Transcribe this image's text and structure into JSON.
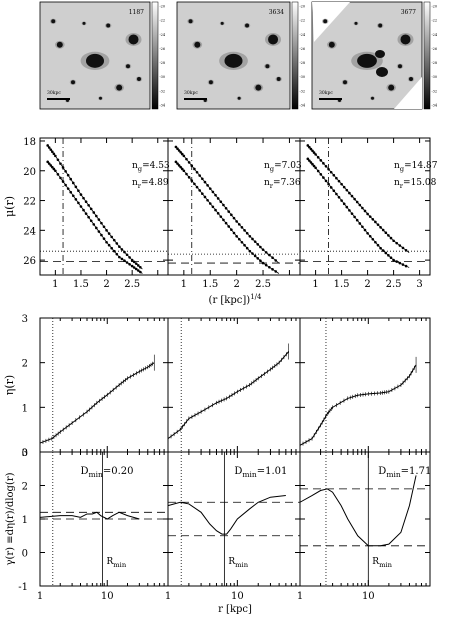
{
  "images": {
    "panels": [
      {
        "id_label": "1187",
        "scale_label": "30kpc",
        "colorbar_ticks": [
          "-20",
          "-22",
          "-24",
          "-26",
          "-28",
          "-30",
          "-32",
          "-34"
        ]
      },
      {
        "id_label": "3634",
        "scale_label": "30kpc",
        "colorbar_ticks": [
          "-20",
          "-22",
          "-24",
          "-26",
          "-28",
          "-30",
          "-32",
          "-34"
        ]
      },
      {
        "id_label": "3677",
        "scale_label": "30kpc",
        "colorbar_ticks": [
          "-20",
          "-22",
          "-24",
          "-26",
          "-28",
          "-30",
          "-32",
          "-34"
        ]
      }
    ]
  },
  "chart_data": [
    {
      "type": "scatter",
      "panel_group": "surface-brightness profiles",
      "ylabel": "μ(r)",
      "xlabel": "(r [kpc])^1/4",
      "xlim": [
        0.7,
        3.2
      ],
      "ylim": [
        27,
        17.8
      ],
      "y_inverted": true,
      "xticks": [
        "1",
        "1.5",
        "2",
        "2.5",
        "3"
      ],
      "yticks": [
        "18",
        "20",
        "22",
        "24",
        "26"
      ],
      "panels": [
        {
          "annotations": [
            "n_g=4.53",
            "n_r=4.89"
          ],
          "series": [
            {
              "band": "g",
              "x": [
                0.85,
                1.0,
                1.25,
                1.5,
                1.75,
                2.0,
                2.25,
                2.5,
                2.7
              ],
              "y": [
                18.3,
                19.0,
                20.3,
                21.6,
                22.8,
                24.0,
                25.1,
                26.0,
                26.6
              ]
            },
            {
              "band": "r",
              "x": [
                0.85,
                1.0,
                1.25,
                1.5,
                1.75,
                2.0,
                2.25,
                2.5,
                2.7
              ],
              "y": [
                19.4,
                20.0,
                21.2,
                22.4,
                23.6,
                24.8,
                25.8,
                26.4,
                26.9
              ]
            }
          ],
          "dotted_h": 25.4,
          "dashed_h": 26.1,
          "vline_x": 1.15
        },
        {
          "annotations": [
            "n_g=7.03",
            "n_r=7.36"
          ],
          "series": [
            {
              "band": "g",
              "x": [
                0.85,
                1.0,
                1.25,
                1.5,
                1.75,
                2.0,
                2.25,
                2.5,
                2.8
              ],
              "y": [
                18.4,
                19.0,
                20.1,
                21.2,
                22.3,
                23.4,
                24.4,
                25.3,
                26.2
              ]
            },
            {
              "band": "r",
              "x": [
                0.85,
                1.0,
                1.25,
                1.5,
                1.75,
                2.0,
                2.25,
                2.5,
                2.8
              ],
              "y": [
                19.4,
                20.0,
                21.1,
                22.2,
                23.3,
                24.4,
                25.4,
                26.2,
                26.9
              ]
            }
          ],
          "dotted_h": 25.6,
          "dashed_h": 26.2,
          "vline_x": 1.15
        },
        {
          "annotations": [
            "n_g=14.87",
            "n_r=15.08"
          ],
          "series": [
            {
              "band": "g",
              "x": [
                0.85,
                1.0,
                1.25,
                1.5,
                1.75,
                2.0,
                2.25,
                2.5,
                2.8
              ],
              "y": [
                18.3,
                18.9,
                19.9,
                20.9,
                21.9,
                22.9,
                23.8,
                24.7,
                25.5
              ]
            },
            {
              "band": "r",
              "x": [
                0.85,
                1.0,
                1.25,
                1.5,
                1.75,
                2.0,
                2.25,
                2.5,
                2.8
              ],
              "y": [
                19.2,
                19.8,
                20.9,
                22.0,
                23.1,
                24.2,
                25.2,
                26.0,
                26.5
              ]
            }
          ],
          "dotted_h": 25.4,
          "dashed_h": 26.1,
          "vline_x": 1.25
        }
      ]
    },
    {
      "type": "line",
      "panel_group": "eta profiles",
      "ylabel": "η(r)",
      "xlim": [
        1,
        80
      ],
      "ylim": [
        0,
        3
      ],
      "xscale": "log",
      "yticks": [
        "0",
        "1",
        "2",
        "3"
      ],
      "panels": [
        {
          "x": [
            1,
            1.5,
            2,
            3,
            5,
            7,
            10,
            15,
            20,
            30,
            40,
            50
          ],
          "y": [
            0.2,
            0.3,
            0.45,
            0.65,
            0.9,
            1.1,
            1.28,
            1.5,
            1.65,
            1.8,
            1.9,
            2.0
          ],
          "vline_x": 1.55
        },
        {
          "x": [
            1,
            1.5,
            2,
            3,
            5,
            7,
            10,
            15,
            20,
            30,
            40,
            55
          ],
          "y": [
            0.3,
            0.5,
            0.75,
            0.9,
            1.1,
            1.2,
            1.35,
            1.5,
            1.65,
            1.85,
            2.0,
            2.25
          ],
          "vline_x": 1.55
        },
        {
          "x": [
            1,
            1.5,
            2,
            2.5,
            3,
            5,
            7,
            10,
            15,
            20,
            30,
            40,
            50
          ],
          "y": [
            0.15,
            0.3,
            0.6,
            0.85,
            1.0,
            1.2,
            1.27,
            1.3,
            1.32,
            1.35,
            1.5,
            1.7,
            1.95
          ],
          "vline_x": 2.4
        }
      ]
    },
    {
      "type": "line",
      "panel_group": "gamma profiles",
      "ylabel": "γ(r) ≡dη(r)/dlog(r)",
      "xlabel": "r [kpc]",
      "xlim": [
        1,
        80
      ],
      "ylim": [
        -1,
        3
      ],
      "xscale": "log",
      "xticks": [
        "1",
        "10"
      ],
      "yticks": [
        "-1",
        "0",
        "1",
        "2",
        "3"
      ],
      "panels": [
        {
          "annotation": "D_min=0.20",
          "rmin_label": "R_min",
          "rmin_x": 8.5,
          "upper_dash": 1.2,
          "lower_dash": 1.0,
          "vline_x": 1.55,
          "x": [
            1,
            2,
            3,
            4,
            5,
            6,
            7,
            8,
            10,
            12,
            15,
            20,
            30
          ],
          "y": [
            1.05,
            1.1,
            1.1,
            1.05,
            1.15,
            1.15,
            1.2,
            1.1,
            1.0,
            1.1,
            1.2,
            1.1,
            1.0
          ]
        },
        {
          "annotation": "D_min=1.01",
          "rmin_label": "R_min",
          "rmin_x": 6.5,
          "upper_dash": 1.5,
          "lower_dash": 0.5,
          "vline_x": 1.55,
          "x": [
            1,
            1.5,
            2,
            3,
            4,
            5,
            6,
            7,
            8,
            10,
            15,
            20,
            30,
            50
          ],
          "y": [
            1.4,
            1.5,
            1.45,
            1.2,
            0.85,
            0.65,
            0.55,
            0.55,
            0.7,
            1.0,
            1.3,
            1.5,
            1.65,
            1.7
          ]
        },
        {
          "annotation": "D_min=1.71",
          "rmin_label": "R_min",
          "rmin_x": 10,
          "upper_dash": 1.9,
          "lower_dash": 0.2,
          "vline_x": 2.4,
          "x": [
            1,
            1.5,
            2,
            2.5,
            3,
            4,
            5,
            7,
            10,
            15,
            20,
            30,
            40,
            50
          ],
          "y": [
            1.5,
            1.7,
            1.85,
            1.9,
            1.8,
            1.4,
            1.0,
            0.5,
            0.2,
            0.2,
            0.25,
            0.6,
            1.4,
            2.3
          ]
        }
      ]
    }
  ]
}
